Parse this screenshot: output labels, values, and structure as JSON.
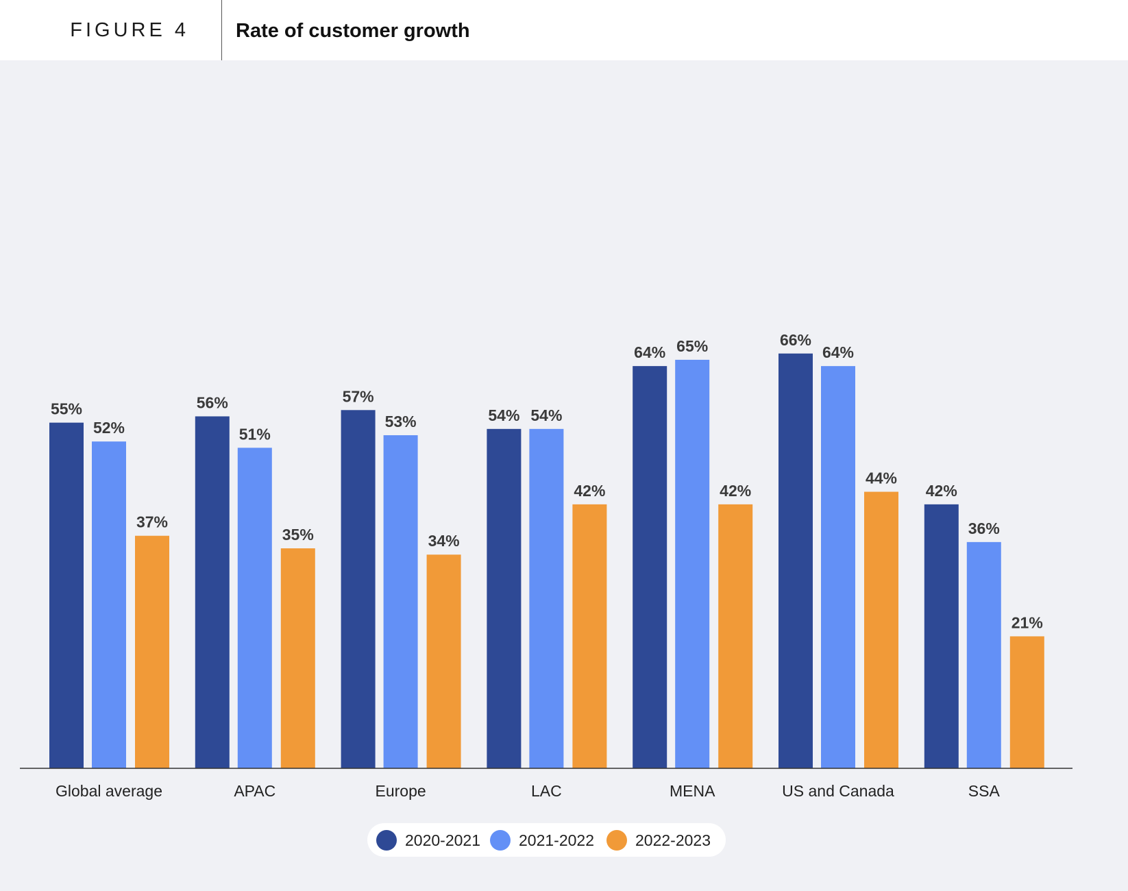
{
  "header": {
    "figure_label": "FIGURE 4",
    "title": "Rate of customer growth"
  },
  "colors": {
    "series_1": "#2e4995",
    "series_2": "#6390f6",
    "series_3": "#f19a38",
    "value_label": "#3a3a3a",
    "category_label": "#222222"
  },
  "chart_data": {
    "type": "bar",
    "title": "Rate of customer growth",
    "xlabel": "",
    "ylabel": "",
    "ylim": [
      0,
      70
    ],
    "grid": false,
    "legend_position": "bottom-center",
    "categories": [
      "Global average",
      "APAC",
      "Europe",
      "LAC",
      "MENA",
      "US and Canada",
      "SSA"
    ],
    "series": [
      {
        "name": "2020-2021",
        "values": [
          55,
          56,
          57,
          54,
          64,
          66,
          42
        ],
        "labels": [
          "55%",
          "56%",
          "57%",
          "54%",
          "64%",
          "66%",
          "42%"
        ]
      },
      {
        "name": "2021-2022",
        "values": [
          52,
          51,
          53,
          54,
          65,
          64,
          36
        ],
        "labels": [
          "52%",
          "51%",
          "53%",
          "54%",
          "65%",
          "64%",
          "36%"
        ]
      },
      {
        "name": "2022-2023",
        "values": [
          37,
          35,
          34,
          42,
          42,
          44,
          21
        ],
        "labels": [
          "37%",
          "35%",
          "34%",
          "42%",
          "42%",
          "44%",
          "21%"
        ]
      }
    ]
  },
  "legend": {
    "items": [
      {
        "label": "2020-2021"
      },
      {
        "label": "2021-2022"
      },
      {
        "label": "2022-2023"
      }
    ]
  }
}
